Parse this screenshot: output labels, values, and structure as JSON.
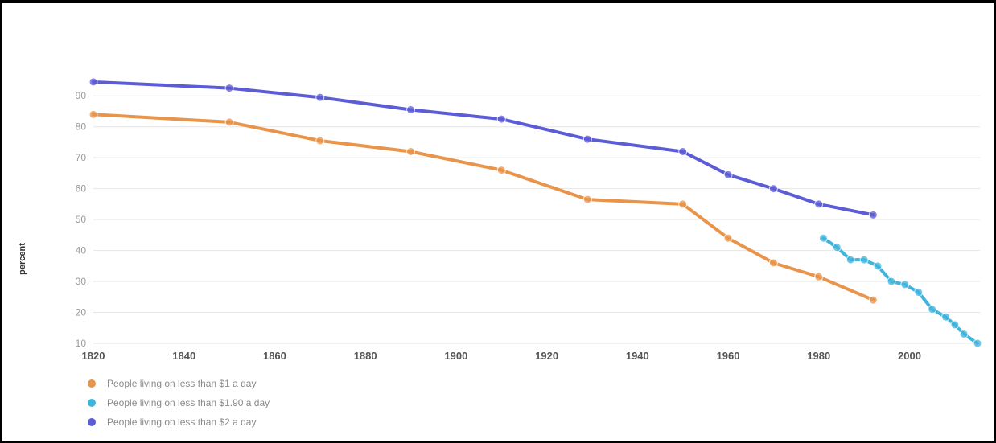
{
  "chart_data": {
    "type": "line",
    "ylabel": "percent",
    "xlabel": "",
    "xlim": [
      1820,
      2015
    ],
    "ylim": [
      10,
      95
    ],
    "x_ticks": [
      "1820",
      "1840",
      "1860",
      "1880",
      "1900",
      "1920",
      "1940",
      "1960",
      "1980",
      "2000"
    ],
    "y_ticks": [
      "10",
      "20",
      "30",
      "40",
      "50",
      "60",
      "70",
      "80",
      "90"
    ],
    "grid": true,
    "legend_position": "bottom-left",
    "series": [
      {
        "name": "People living on less than $1 a day",
        "color": "#e8944a",
        "points": [
          [
            1820,
            84
          ],
          [
            1850,
            81.5
          ],
          [
            1870,
            75.5
          ],
          [
            1890,
            72
          ],
          [
            1910,
            66
          ],
          [
            1929,
            56.5
          ],
          [
            1950,
            55
          ],
          [
            1960,
            44
          ],
          [
            1970,
            36
          ],
          [
            1980,
            31.5
          ],
          [
            1992,
            24
          ]
        ]
      },
      {
        "name": "People living on less than $1.90 a day",
        "color": "#3fb5dd",
        "points": [
          [
            1981,
            44
          ],
          [
            1984,
            41
          ],
          [
            1987,
            37
          ],
          [
            1990,
            37
          ],
          [
            1993,
            35
          ],
          [
            1996,
            30
          ],
          [
            1999,
            29
          ],
          [
            2002,
            26.5
          ],
          [
            2005,
            21
          ],
          [
            2008,
            18.5
          ],
          [
            2010,
            16
          ],
          [
            2012,
            13
          ],
          [
            2015,
            10
          ]
        ]
      },
      {
        "name": "People living on less than $2 a day",
        "color": "#5b5cd6",
        "points": [
          [
            1820,
            94.5
          ],
          [
            1850,
            92.5
          ],
          [
            1870,
            89.5
          ],
          [
            1890,
            85.5
          ],
          [
            1910,
            82.5
          ],
          [
            1929,
            76
          ],
          [
            1950,
            72
          ],
          [
            1960,
            64.5
          ],
          [
            1970,
            60
          ],
          [
            1980,
            55
          ],
          [
            1992,
            51.5
          ]
        ]
      }
    ]
  }
}
